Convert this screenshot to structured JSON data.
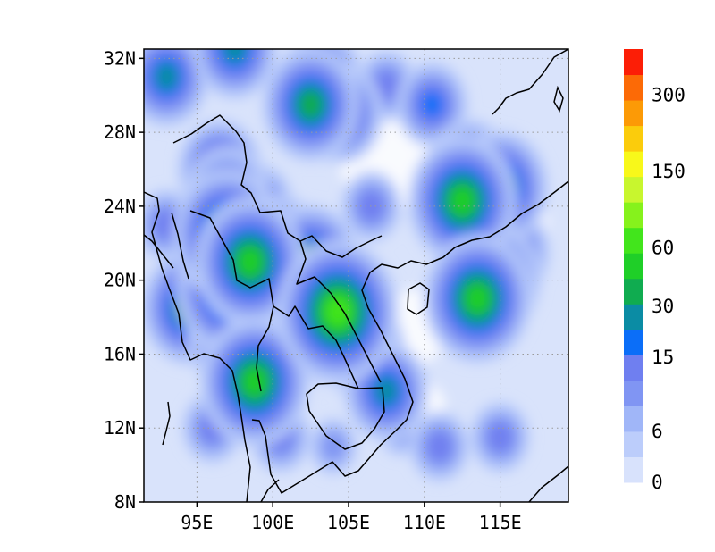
{
  "map": {
    "lon_range": [
      91.5,
      119.5
    ],
    "lat_range": [
      8,
      32.5
    ],
    "lat_ticks": [
      {
        "value": 32,
        "label": "32N"
      },
      {
        "value": 28,
        "label": "28N"
      },
      {
        "value": 24,
        "label": "24N"
      },
      {
        "value": 20,
        "label": "20N"
      },
      {
        "value": 16,
        "label": "16N"
      },
      {
        "value": 12,
        "label": "12N"
      },
      {
        "value": 8,
        "label": "8N"
      }
    ],
    "lon_ticks": [
      {
        "value": 95,
        "label": "95E"
      },
      {
        "value": 100,
        "label": "100E"
      },
      {
        "value": 105,
        "label": "105E"
      },
      {
        "value": 110,
        "label": "110E"
      },
      {
        "value": 115,
        "label": "115E"
      }
    ],
    "grid": "dotted",
    "background_color": "#d9e3fb"
  },
  "colorbar": {
    "colors": [
      "#d8e2fc",
      "#bccdfb",
      "#a0b6f8",
      "#8095f3",
      "#6f7ff0",
      "#0b6ef8",
      "#0b8ca4",
      "#10ac50",
      "#1fcf28",
      "#42e51c",
      "#86f21c",
      "#c8f62e",
      "#f8f81a",
      "#fbcc0c",
      "#fc9a06",
      "#fc6a06",
      "#fc1e06"
    ],
    "labels": [
      "300",
      "150",
      "60",
      "30",
      "15",
      "6",
      "0"
    ]
  },
  "features": [
    {
      "lon": 104.3,
      "lat": 18.3,
      "level": 9
    },
    {
      "lon": 103.5,
      "lat": 17.5,
      "level": 7
    },
    {
      "lon": 106.0,
      "lat": 16.2,
      "level": 6
    },
    {
      "lon": 107.5,
      "lat": 14.0,
      "level": 6
    },
    {
      "lon": 98.0,
      "lat": 17.0,
      "level": 8
    },
    {
      "lon": 97.2,
      "lat": 19.5,
      "level": 8
    },
    {
      "lon": 97.0,
      "lat": 22.5,
      "level": 8
    },
    {
      "lon": 98.5,
      "lat": 21.0,
      "level": 8
    },
    {
      "lon": 100.5,
      "lat": 21.5,
      "level": 7
    },
    {
      "lon": 102.5,
      "lat": 21.0,
      "level": 7
    },
    {
      "lon": 101.5,
      "lat": 19.5,
      "level": 6
    },
    {
      "lon": 98.8,
      "lat": 14.5,
      "level": 8
    },
    {
      "lon": 94.5,
      "lat": 18.5,
      "level": 7
    },
    {
      "lon": 96.5,
      "lat": 26.0,
      "level": 6
    },
    {
      "lon": 97.0,
      "lat": 24.5,
      "level": 6
    },
    {
      "lon": 99.0,
      "lat": 24.0,
      "level": 5
    },
    {
      "lon": 102.5,
      "lat": 29.5,
      "level": 7
    },
    {
      "lon": 103.2,
      "lat": 30.8,
      "level": 6
    },
    {
      "lon": 104.5,
      "lat": 29.0,
      "level": 6
    },
    {
      "lon": 110.5,
      "lat": 29.5,
      "level": 5
    },
    {
      "lon": 113.0,
      "lat": 26.0,
      "level": 6
    },
    {
      "lon": 115.0,
      "lat": 25.0,
      "level": 7
    },
    {
      "lon": 112.5,
      "lat": 24.3,
      "level": 8
    },
    {
      "lon": 113.5,
      "lat": 19.0,
      "level": 8
    },
    {
      "lon": 114.5,
      "lat": 20.0,
      "level": 7
    },
    {
      "lon": 115.5,
      "lat": 21.5,
      "level": 6
    },
    {
      "lon": 93.0,
      "lat": 31.0,
      "level": 6
    },
    {
      "lon": 97.5,
      "lat": 32.5,
      "level": 6
    },
    {
      "lon": 106.5,
      "lat": 24.0,
      "level": 4
    },
    {
      "lon": 96.0,
      "lat": 12.0,
      "level": 4
    },
    {
      "lon": 111.0,
      "lat": 11.0,
      "level": 4
    },
    {
      "lon": 115.0,
      "lat": 11.5,
      "level": 4
    },
    {
      "lon": 100.5,
      "lat": 11.5,
      "level": 4
    },
    {
      "lon": 104.0,
      "lat": 11.0,
      "level": 3
    },
    {
      "lon": 108.5,
      "lat": 12.0,
      "level": 3
    },
    {
      "lon": 93.0,
      "lat": 23.0,
      "level": 4
    },
    {
      "lon": 107.5,
      "lat": 30.5,
      "level": 4
    }
  ],
  "lows": [
    {
      "lon": 107.5,
      "lat": 27.0,
      "r": 3.2
    },
    {
      "lon": 109.5,
      "lat": 17.5,
      "r": 2.0
    },
    {
      "lon": 117.0,
      "lat": 23.0,
      "r": 1.2
    },
    {
      "lon": 110.0,
      "lat": 13.0,
      "r": 1.4
    }
  ]
}
